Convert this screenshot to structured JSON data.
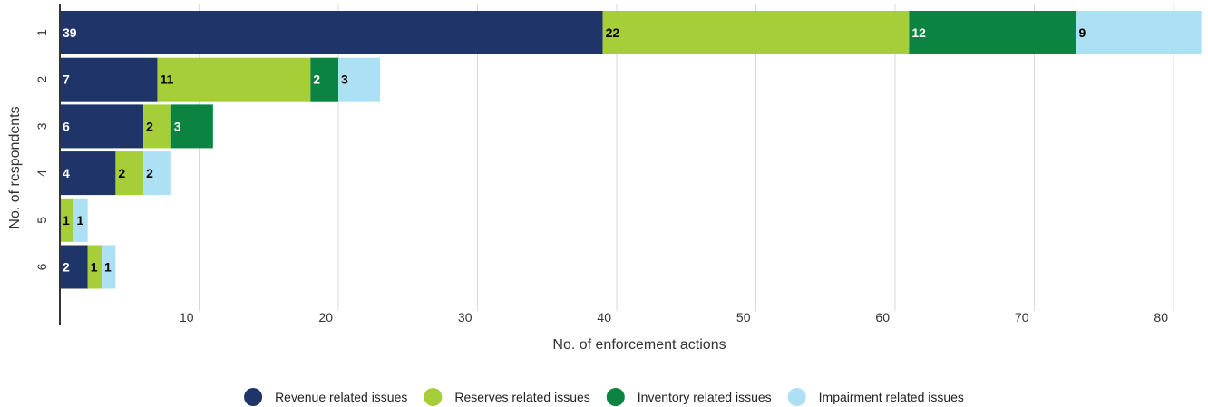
{
  "chart_data": {
    "type": "bar",
    "orientation": "horizontal",
    "stacked": true,
    "categories": [
      "1",
      "2",
      "3",
      "4",
      "5",
      "6"
    ],
    "series": [
      {
        "name": "Revenue related issues",
        "color": "#1f356a",
        "label_color": "#ffffff",
        "values": [
          39,
          7,
          6,
          4,
          0,
          2
        ]
      },
      {
        "name": "Reserves related issues",
        "color": "#a6ce39",
        "label_color": "#000000",
        "values": [
          22,
          11,
          2,
          2,
          1,
          1
        ]
      },
      {
        "name": "Inventory related issues",
        "color": "#0b8442",
        "label_color": "#ffffff",
        "values": [
          12,
          2,
          3,
          0,
          0,
          0
        ]
      },
      {
        "name": "Impairment related issues",
        "color": "#ace0f5",
        "label_color": "#000000",
        "values": [
          9,
          3,
          0,
          2,
          1,
          1
        ]
      }
    ],
    "xlabel": "No. of enforcement actions",
    "ylabel": "No. of respondents",
    "xlim": [
      0,
      82
    ],
    "xticks": [
      10,
      20,
      30,
      40,
      50,
      60,
      70,
      80
    ],
    "grid": true,
    "legend_position": "bottom"
  }
}
